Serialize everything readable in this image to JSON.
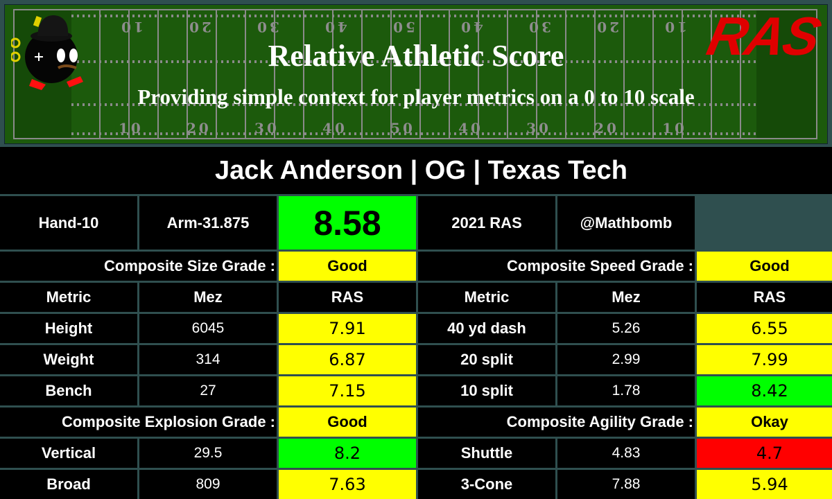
{
  "banner": {
    "title": "Relative Athletic Score",
    "subtitle": "Providing simple context for player metrics on a 0 to 10 scale",
    "logo_text": "RAS",
    "yard_numbers": [
      "10",
      "20",
      "30",
      "40",
      "50",
      "40",
      "30",
      "20",
      "10"
    ]
  },
  "player": {
    "title": "Jack Anderson | OG | Texas Tech",
    "hand": "Hand-10",
    "arm": "Arm-31.875",
    "ras_score": "8.58",
    "year_label": "2021 RAS",
    "handle": "@Mathbomb"
  },
  "colors": {
    "good": "#ffff00",
    "elite": "#00ff00",
    "poor": "#ff0000",
    "grid": "#2f4f4f"
  },
  "headers": {
    "metric": "Metric",
    "mez": "Mez",
    "ras": "RAS"
  },
  "size": {
    "label": "Composite Size Grade :",
    "grade": "Good",
    "rows": [
      {
        "metric": "Height",
        "mez": "6045",
        "ras": "7.91",
        "color": "yellow"
      },
      {
        "metric": "Weight",
        "mez": "314",
        "ras": "6.87",
        "color": "yellow"
      },
      {
        "metric": "Bench",
        "mez": "27",
        "ras": "7.15",
        "color": "yellow"
      }
    ]
  },
  "speed": {
    "label": "Composite Speed Grade :",
    "grade": "Good",
    "rows": [
      {
        "metric": "40 yd dash",
        "mez": "5.26",
        "ras": "6.55",
        "color": "yellow"
      },
      {
        "metric": "20 split",
        "mez": "2.99",
        "ras": "7.99",
        "color": "yellow"
      },
      {
        "metric": "10 split",
        "mez": "1.78",
        "ras": "8.42",
        "color": "green"
      }
    ]
  },
  "explosion": {
    "label": "Composite Explosion Grade :",
    "grade": "Good",
    "rows": [
      {
        "metric": "Vertical",
        "mez": "29.5",
        "ras": "8.2",
        "color": "green"
      },
      {
        "metric": "Broad",
        "mez": "809",
        "ras": "7.63",
        "color": "yellow"
      }
    ]
  },
  "agility": {
    "label": "Composite Agility Grade :",
    "grade": "Okay",
    "rows": [
      {
        "metric": "Shuttle",
        "mez": "4.83",
        "ras": "4.7",
        "color": "red"
      },
      {
        "metric": "3-Cone",
        "mez": "7.88",
        "ras": "5.94",
        "color": "yellow"
      }
    ]
  }
}
